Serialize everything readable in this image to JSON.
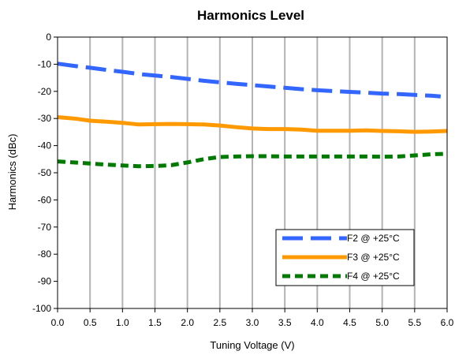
{
  "chart_data": {
    "type": "line",
    "title": "Harmonics Level",
    "xlabel": "Tuning Voltage (V)",
    "ylabel": "Harmonics (dBc)",
    "xlim": [
      0,
      6
    ],
    "ylim": [
      -100,
      0
    ],
    "x_ticks": [
      "0.0",
      "0.5",
      "1.0",
      "1.5",
      "2.0",
      "2.5",
      "3.0",
      "3.5",
      "4.0",
      "4.5",
      "5.0",
      "5.5",
      "6.0"
    ],
    "y_ticks": [
      "0",
      "-10",
      "-20",
      "-30",
      "-40",
      "-50",
      "-60",
      "-70",
      "-80",
      "-90",
      "-100"
    ],
    "grid": "vertical",
    "legend_position": "bottom-right",
    "series": [
      {
        "name": "F2 @ +25°C",
        "color": "#3366ff",
        "style": "long-dash",
        "x": [
          0,
          0.25,
          0.5,
          0.75,
          1.0,
          1.25,
          1.5,
          1.75,
          2.0,
          2.25,
          2.5,
          2.75,
          3.0,
          3.25,
          3.5,
          3.75,
          4.0,
          4.25,
          4.5,
          4.75,
          5.0,
          5.25,
          5.5,
          5.75,
          5.9
        ],
        "y": [
          -9.8,
          -10.6,
          -11.3,
          -12.1,
          -12.8,
          -13.6,
          -14.2,
          -14.7,
          -15.4,
          -16.1,
          -16.7,
          -17.2,
          -17.7,
          -18.2,
          -18.7,
          -19.2,
          -19.6,
          -19.9,
          -20.2,
          -20.5,
          -20.8,
          -21.0,
          -21.3,
          -21.6,
          -21.9
        ]
      },
      {
        "name": "F3 @ +25°C",
        "color": "#ff9900",
        "style": "solid",
        "x": [
          0,
          0.25,
          0.5,
          0.75,
          1.0,
          1.25,
          1.5,
          1.75,
          2.0,
          2.25,
          2.5,
          2.75,
          3.0,
          3.25,
          3.5,
          3.75,
          4.0,
          4.25,
          4.5,
          4.75,
          5.0,
          5.25,
          5.5,
          5.75,
          6.0
        ],
        "y": [
          -29.5,
          -30.0,
          -30.8,
          -31.2,
          -31.6,
          -32.2,
          -32.1,
          -32.0,
          -32.1,
          -32.2,
          -32.6,
          -33.2,
          -33.7,
          -33.9,
          -33.9,
          -34.1,
          -34.5,
          -34.5,
          -34.5,
          -34.4,
          -34.6,
          -34.7,
          -34.9,
          -34.8,
          -34.6
        ]
      },
      {
        "name": "F4 @ +25°C",
        "color": "#007a00",
        "style": "short-dash",
        "x": [
          0,
          0.25,
          0.5,
          0.75,
          1.0,
          1.25,
          1.5,
          1.75,
          2.0,
          2.25,
          2.5,
          2.75,
          3.0,
          3.25,
          3.5,
          3.75,
          4.0,
          4.25,
          4.5,
          4.75,
          5.0,
          5.25,
          5.5,
          5.75,
          6.0
        ],
        "y": [
          -45.8,
          -46.2,
          -46.6,
          -47.0,
          -47.3,
          -47.6,
          -47.5,
          -47.2,
          -46.2,
          -45.0,
          -44.2,
          -44.0,
          -43.9,
          -43.9,
          -44.0,
          -44.0,
          -44.0,
          -44.0,
          -44.0,
          -44.0,
          -44.1,
          -44.0,
          -43.6,
          -43.2,
          -43.0
        ]
      }
    ]
  }
}
